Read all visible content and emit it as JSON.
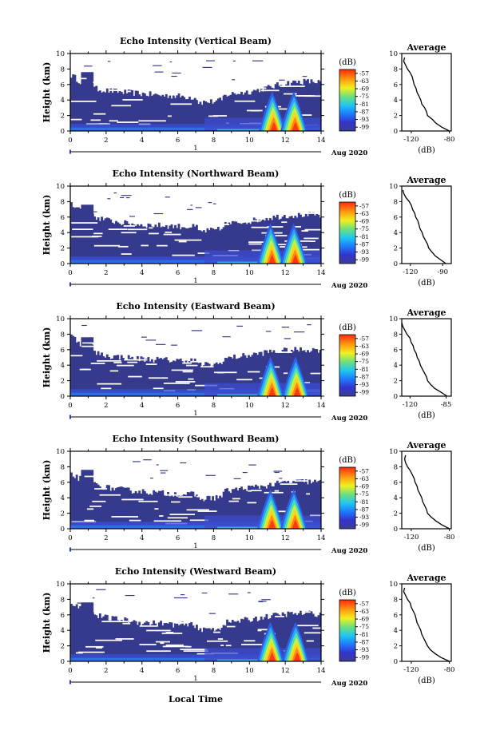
{
  "figure": {
    "xlabel": "Local Time",
    "date_label": "Aug 2020",
    "day_marker": "1"
  },
  "colorbar": {
    "unit": "(dB)",
    "tick_labels": [
      "-57",
      "-63",
      "-69",
      "-75",
      "-81",
      "-87",
      "-93",
      "-99"
    ],
    "range_db": [
      -102,
      -54
    ]
  },
  "chart_data": [
    {
      "type": "heatmap",
      "beam": "vertical",
      "title": "Echo Intensity (Vertical Beam)",
      "ylabel": "Height (km)",
      "x_ticks": [
        0,
        2,
        4,
        6,
        8,
        10,
        12,
        14
      ],
      "y_ticks": [
        0,
        2,
        4,
        6,
        8,
        10
      ],
      "xlim": [
        0,
        14
      ],
      "ylim": [
        0,
        10
      ],
      "cloud_top_km": [
        7.2,
        5.6,
        5.2,
        5.0,
        4.8,
        4.6,
        4.5,
        4.3,
        4.4,
        4.8,
        5.1,
        5.6,
        6.2,
        6.4,
        6.3
      ],
      "strong_echo": [
        {
          "center_hour": 11.4,
          "top_km": 4.6
        },
        {
          "center_hour": 12.6,
          "top_km": 4.6
        }
      ],
      "average": {
        "title": "Average",
        "xlabel": "(dB)",
        "x_ticks": [
          -120,
          -80
        ],
        "xlim": [
          -130,
          -78
        ],
        "height_km": [
          0,
          0.5,
          1,
          1.5,
          2,
          2.5,
          3,
          3.5,
          4,
          4.5,
          5,
          5.5,
          6,
          6.5,
          7,
          7.5,
          8,
          8.5,
          9,
          9.5
        ],
        "db": [
          -80,
          -88,
          -94,
          -98,
          -103,
          -104,
          -106,
          -109,
          -110,
          -112,
          -114,
          -115,
          -117,
          -118,
          -119,
          -121,
          -124,
          -126,
          -128,
          -127
        ]
      }
    },
    {
      "type": "heatmap",
      "beam": "northward",
      "title": "Echo Intensity (Northward Beam)",
      "ylabel": "Height (km)",
      "x_ticks": [
        0,
        2,
        4,
        6,
        8,
        10,
        12,
        14
      ],
      "y_ticks": [
        0,
        2,
        4,
        6,
        8,
        10
      ],
      "xlim": [
        0,
        14
      ],
      "ylim": [
        0,
        10
      ],
      "cloud_top_km": [
        7.8,
        6.2,
        5.6,
        5.2,
        5.0,
        4.9,
        4.8,
        4.7,
        4.9,
        5.2,
        5.5,
        5.9,
        6.2,
        6.3,
        6.2
      ],
      "strong_echo": [
        {
          "center_hour": 11.3,
          "top_km": 4.7
        },
        {
          "center_hour": 12.6,
          "top_km": 4.7
        }
      ],
      "average": {
        "title": "Average",
        "xlabel": "(dB)",
        "x_ticks": [
          -120,
          -90
        ],
        "xlim": [
          -128,
          -82
        ],
        "height_km": [
          0,
          0.5,
          1,
          1.5,
          2,
          2.5,
          3,
          3.5,
          4,
          4.5,
          5,
          5.5,
          6,
          6.5,
          7,
          7.5,
          8,
          8.5,
          9,
          9.5
        ],
        "db": [
          -87,
          -92,
          -97,
          -100,
          -103,
          -104,
          -106,
          -108,
          -109,
          -111,
          -112,
          -113,
          -115,
          -116,
          -118,
          -119,
          -121,
          -124,
          -126,
          -127
        ]
      }
    },
    {
      "type": "heatmap",
      "beam": "eastward",
      "title": "Echo Intensity (Eastward Beam)",
      "ylabel": "Height (km)",
      "x_ticks": [
        0,
        2,
        4,
        6,
        8,
        10,
        12,
        14
      ],
      "y_ticks": [
        0,
        2,
        4,
        6,
        8,
        10
      ],
      "xlim": [
        0,
        14
      ],
      "ylim": [
        0,
        10
      ],
      "cloud_top_km": [
        7.8,
        5.8,
        5.2,
        5.0,
        4.8,
        4.7,
        4.6,
        4.6,
        4.7,
        5.0,
        5.3,
        5.7,
        5.9,
        6.0,
        6.0
      ],
      "strong_echo": [
        {
          "center_hour": 11.3,
          "top_km": 4.6
        },
        {
          "center_hour": 12.7,
          "top_km": 4.6
        }
      ],
      "average": {
        "title": "Average",
        "xlabel": "(dB)",
        "x_ticks": [
          -120,
          -85
        ],
        "xlim": [
          -128,
          -80
        ],
        "height_km": [
          0,
          0.5,
          1,
          1.5,
          2,
          2.5,
          3,
          3.5,
          4,
          4.5,
          5,
          5.5,
          6,
          6.5,
          7,
          7.5,
          8,
          8.5,
          9,
          9.5
        ],
        "db": [
          -84,
          -90,
          -96,
          -100,
          -103,
          -104,
          -106,
          -108,
          -110,
          -111,
          -113,
          -114,
          -116,
          -117,
          -119,
          -120,
          -123,
          -125,
          -127,
          -128
        ]
      }
    },
    {
      "type": "heatmap",
      "beam": "southward",
      "title": "Echo Intensity (Southward Beam)",
      "ylabel": "Height (km)",
      "x_ticks": [
        0,
        2,
        4,
        6,
        8,
        10,
        12,
        14
      ],
      "y_ticks": [
        0,
        2,
        4,
        6,
        8,
        10
      ],
      "xlim": [
        0,
        14
      ],
      "ylim": [
        0,
        10
      ],
      "cloud_top_km": [
        7.0,
        5.9,
        5.3,
        5.0,
        4.8,
        4.6,
        4.5,
        4.4,
        4.6,
        5.0,
        5.3,
        5.6,
        6.0,
        6.1,
        6.0
      ],
      "strong_echo": [
        {
          "center_hour": 11.3,
          "top_km": 4.6
        },
        {
          "center_hour": 12.6,
          "top_km": 4.6
        }
      ],
      "average": {
        "title": "Average",
        "xlabel": "(dB)",
        "x_ticks": [
          -120,
          -80
        ],
        "xlim": [
          -130,
          -78
        ],
        "height_km": [
          0,
          0.5,
          1,
          1.5,
          2,
          2.5,
          3,
          3.5,
          4,
          4.5,
          5,
          5.5,
          6,
          6.5,
          7,
          7.5,
          8,
          8.5,
          9,
          9.5
        ],
        "db": [
          -80,
          -88,
          -94,
          -99,
          -103,
          -104,
          -106,
          -108,
          -109,
          -111,
          -113,
          -114,
          -116,
          -117,
          -119,
          -121,
          -124,
          -126,
          -127,
          -126
        ]
      }
    },
    {
      "type": "heatmap",
      "beam": "westward",
      "title": "Echo Intensity (Westward Beam)",
      "ylabel": "Height (km)",
      "x_ticks": [
        0,
        2,
        4,
        6,
        8,
        10,
        12,
        14
      ],
      "y_ticks": [
        0,
        2,
        4,
        6,
        8,
        10
      ],
      "xlim": [
        0,
        14
      ],
      "ylim": [
        0,
        10
      ],
      "cloud_top_km": [
        7.6,
        6.2,
        5.6,
        5.3,
        5.0,
        4.9,
        4.7,
        4.7,
        4.8,
        5.1,
        5.4,
        5.8,
        6.1,
        6.2,
        6.1
      ],
      "strong_echo": [
        {
          "center_hour": 11.3,
          "top_km": 4.6
        },
        {
          "center_hour": 12.7,
          "top_km": 4.6
        }
      ],
      "average": {
        "title": "Average",
        "xlabel": "(dB)",
        "x_ticks": [
          -120,
          -80
        ],
        "xlim": [
          -130,
          -78
        ],
        "height_km": [
          0,
          0.5,
          1,
          1.5,
          2,
          2.5,
          3,
          3.5,
          4,
          4.5,
          5,
          5.5,
          6,
          6.5,
          7,
          7.5,
          8,
          8.5,
          9,
          9.5
        ],
        "db": [
          -80,
          -89,
          -95,
          -100,
          -103,
          -105,
          -107,
          -109,
          -110,
          -112,
          -114,
          -115,
          -116,
          -118,
          -120,
          -121,
          -124,
          -126,
          -128,
          -127
        ]
      }
    }
  ]
}
